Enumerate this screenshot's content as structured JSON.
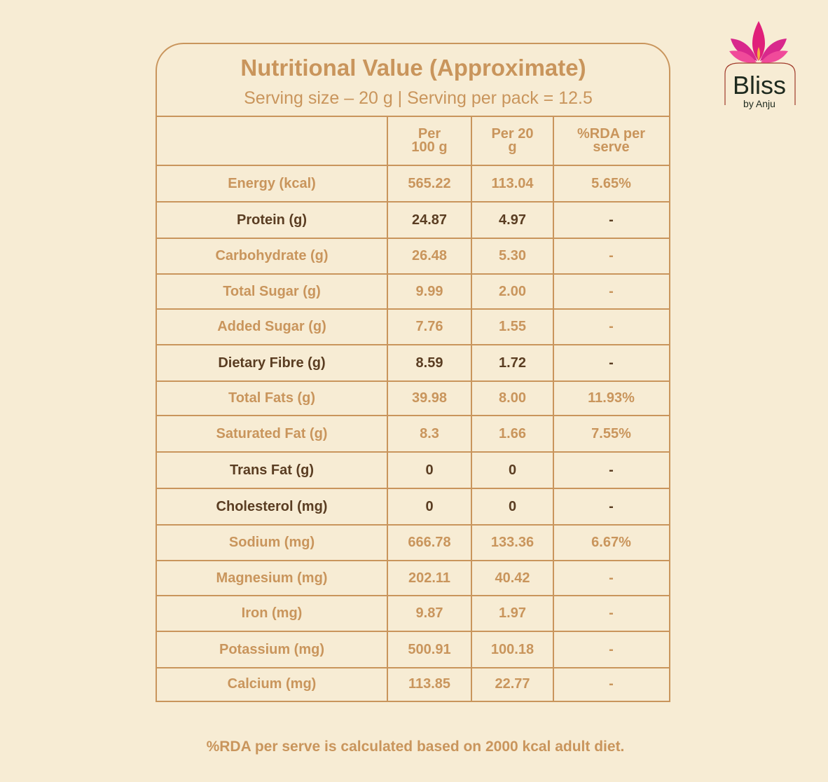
{
  "title": "Nutritional Value (Approximate)",
  "subtitle": "Serving size – 20 g | Serving per pack = 12.5",
  "logo": {
    "name": "Bliss",
    "tagline": "by Anju"
  },
  "table": {
    "header": [
      "Per 100 g",
      "Per 20 g",
      "%RDA per serve"
    ],
    "rows": [
      {
        "cells": [
          "Energy (kcal)",
          "565.22",
          "113.04",
          "5.65%"
        ],
        "bold": false
      },
      {
        "cells": [
          "Protein (g)",
          "24.87",
          "4.97",
          "-"
        ],
        "bold": true
      },
      {
        "cells": [
          "Carbohydrate (g)",
          "26.48",
          "5.30",
          "-"
        ],
        "bold": false
      },
      {
        "cells": [
          "Total Sugar (g)",
          "9.99",
          "2.00",
          "-"
        ],
        "bold": false
      },
      {
        "cells": [
          "Added Sugar (g)",
          "7.76",
          "1.55",
          "-"
        ],
        "bold": false
      },
      {
        "cells": [
          "Dietary Fibre (g)",
          "8.59",
          "1.72",
          "-"
        ],
        "bold": true
      },
      {
        "cells": [
          "Total Fats (g)",
          "39.98",
          "8.00",
          "11.93%"
        ],
        "bold": false
      },
      {
        "cells": [
          "Saturated Fat (g)",
          "8.3",
          "1.66",
          "7.55%"
        ],
        "bold": false
      },
      {
        "cells": [
          "Trans Fat (g)",
          "0",
          "0",
          "-"
        ],
        "bold": true
      },
      {
        "cells": [
          "Cholesterol (mg)",
          "0",
          "0",
          "-"
        ],
        "bold": true
      },
      {
        "cells": [
          "Sodium (mg)",
          "666.78",
          "133.36",
          "6.67%"
        ],
        "bold": false
      },
      {
        "cells": [
          "Magnesium (mg)",
          "202.11",
          "40.42",
          "-"
        ],
        "bold": false
      },
      {
        "cells": [
          "Iron (mg)",
          "9.87",
          "1.97",
          "-"
        ],
        "bold": false
      },
      {
        "cells": [
          "Potassium (mg)",
          "500.91",
          "100.18",
          "-"
        ],
        "bold": false
      },
      {
        "cells": [
          "Calcium (mg)",
          "113.85",
          "22.77",
          "-"
        ],
        "bold": false
      }
    ]
  },
  "footnote": "%RDA per serve is calculated based on 2000 kcal adult diet."
}
